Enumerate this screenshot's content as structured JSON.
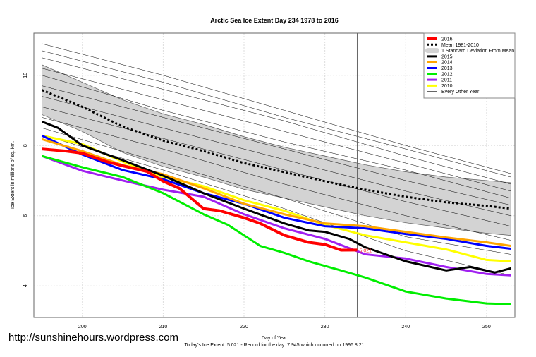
{
  "watermark": "http://sunshinehours.wordpress.com",
  "chart_data": {
    "type": "line",
    "title": "Arctic Sea Ice Extent Day 234 1978 to 2016",
    "xlabel": "Day of Year",
    "ylabel": "Ice Extent in millions of sq. km.",
    "subtitle": "Today's Ice Extent: 5.021  - Record for the day: 7.945 which occurred on 1996 8 21",
    "xlim": [
      194,
      253.5
    ],
    "ylim": [
      3.1,
      11.2
    ],
    "xticks": [
      200,
      210,
      220,
      230,
      240,
      250
    ],
    "yticks": [
      4,
      6,
      8,
      10
    ],
    "grid": true,
    "legend_position": "top-right",
    "current_day": 234,
    "current_value_label": "5.021",
    "std_band": {
      "label": "1 Standard Deviation From Mean",
      "color": "#d3d3d3",
      "x": [
        195,
        200,
        205,
        210,
        215,
        220,
        225,
        230,
        235,
        240,
        245,
        250,
        253
      ],
      "upper": [
        10.3,
        9.8,
        9.3,
        8.9,
        8.6,
        8.25,
        7.95,
        7.7,
        7.45,
        7.25,
        7.1,
        7.0,
        6.94
      ],
      "lower": [
        8.88,
        8.4,
        7.8,
        7.4,
        7.1,
        6.75,
        6.5,
        6.25,
        6.0,
        5.8,
        5.65,
        5.5,
        5.44
      ]
    },
    "series": [
      {
        "name": "2016",
        "color": "#ff0000",
        "width": 4,
        "x": [
          195,
          198,
          200,
          203,
          205,
          208,
          210,
          212,
          215,
          217,
          220,
          222,
          225,
          228,
          230,
          232,
          234
        ],
        "y": [
          7.9,
          7.84,
          7.78,
          7.54,
          7.42,
          7.26,
          6.98,
          6.78,
          6.2,
          6.14,
          5.94,
          5.78,
          5.44,
          5.24,
          5.18,
          5.02,
          5.021
        ]
      },
      {
        "name": "Mean 1981-2010",
        "color": "#000000",
        "width": 3,
        "dash": true,
        "x": [
          195,
          200,
          205,
          210,
          215,
          220,
          225,
          230,
          235,
          240,
          245,
          250,
          253
        ],
        "y": [
          9.58,
          9.1,
          8.54,
          8.14,
          7.84,
          7.5,
          7.24,
          6.98,
          6.74,
          6.54,
          6.38,
          6.28,
          6.2
        ]
      },
      {
        "name": "2015",
        "color": "#000000",
        "width": 3,
        "x": [
          195,
          197,
          200,
          205,
          210,
          213,
          215,
          220,
          225,
          228,
          230,
          233,
          235,
          240,
          245,
          248,
          251,
          253
        ],
        "y": [
          8.68,
          8.5,
          8.0,
          7.58,
          7.14,
          6.84,
          6.64,
          6.2,
          5.78,
          5.58,
          5.54,
          5.34,
          5.1,
          4.7,
          4.44,
          4.54,
          4.38,
          4.5
        ]
      },
      {
        "name": "2014",
        "color": "#ffa500",
        "width": 3,
        "x": [
          195,
          200,
          205,
          210,
          215,
          220,
          225,
          230,
          235,
          240,
          245,
          250,
          253
        ],
        "y": [
          8.18,
          7.84,
          7.44,
          7.18,
          6.78,
          6.34,
          6.04,
          5.78,
          5.7,
          5.54,
          5.38,
          5.24,
          5.14
        ]
      },
      {
        "name": "2013",
        "color": "#0000ff",
        "width": 3,
        "x": [
          195,
          200,
          205,
          210,
          215,
          220,
          225,
          230,
          235,
          240,
          245,
          250,
          253
        ],
        "y": [
          8.28,
          7.74,
          7.3,
          7.04,
          6.64,
          6.34,
          5.94,
          5.7,
          5.64,
          5.48,
          5.34,
          5.14,
          5.06
        ]
      },
      {
        "name": "2012",
        "color": "#00ee00",
        "width": 3,
        "x": [
          195,
          200,
          205,
          210,
          215,
          218,
          222,
          225,
          228,
          232,
          235,
          240,
          245,
          250,
          253
        ],
        "y": [
          7.7,
          7.38,
          7.1,
          6.64,
          6.04,
          5.74,
          5.14,
          4.94,
          4.7,
          4.44,
          4.24,
          3.84,
          3.64,
          3.5,
          3.48
        ]
      },
      {
        "name": "2011",
        "color": "#a020f0",
        "width": 3,
        "x": [
          195,
          200,
          205,
          210,
          215,
          220,
          225,
          230,
          235,
          240,
          245,
          250,
          253
        ],
        "y": [
          7.7,
          7.28,
          7.0,
          6.74,
          6.54,
          6.04,
          5.64,
          5.34,
          4.9,
          4.78,
          4.54,
          4.34,
          4.3
        ]
      },
      {
        "name": "2010",
        "color": "#ffff00",
        "width": 3,
        "x": [
          195,
          200,
          205,
          210,
          215,
          220,
          225,
          230,
          235,
          240,
          245,
          250,
          253
        ],
        "y": [
          8.28,
          8.04,
          7.54,
          7.1,
          6.84,
          6.44,
          6.14,
          5.74,
          5.44,
          5.24,
          5.04,
          4.74,
          4.7
        ]
      }
    ],
    "other_years": {
      "name": "Every Other Year",
      "color": "#000000",
      "x": [
        195,
        210,
        225,
        240,
        253
      ],
      "lines": [
        [
          10.9,
          10.0,
          9.0,
          8.0,
          7.2
        ],
        [
          10.7,
          9.8,
          8.8,
          7.9,
          7.1
        ],
        [
          10.5,
          9.6,
          8.7,
          7.7,
          6.9
        ],
        [
          10.2,
          9.3,
          8.4,
          7.5,
          6.7
        ],
        [
          10.0,
          9.0,
          8.1,
          7.3,
          6.5
        ],
        [
          9.7,
          8.8,
          7.9,
          7.0,
          6.3
        ],
        [
          9.4,
          8.5,
          7.6,
          6.7,
          6.0
        ],
        [
          9.1,
          8.2,
          7.3,
          6.4,
          5.7
        ],
        [
          8.8,
          7.9,
          6.9,
          6.0,
          5.3
        ],
        [
          8.5,
          7.5,
          6.5,
          5.4,
          4.9
        ],
        [
          8.3,
          7.3,
          6.2,
          5.0,
          4.3
        ]
      ]
    }
  }
}
